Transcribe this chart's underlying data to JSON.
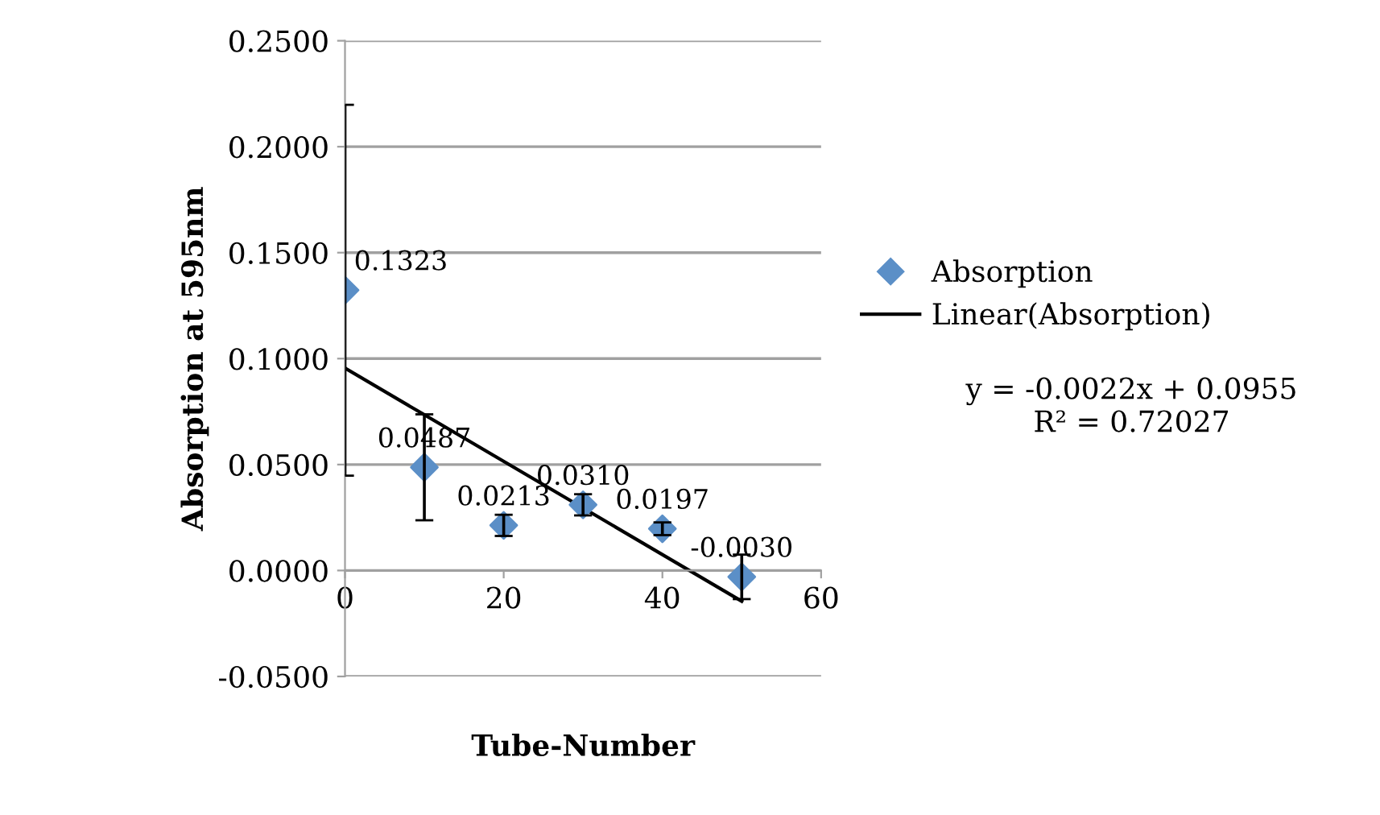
{
  "chart_data": {
    "type": "scatter",
    "xlabel": "Tube-Number",
    "ylabel": "Absorption at 595nm",
    "xlim": [
      0,
      60
    ],
    "xticks": [
      0,
      20,
      40,
      60
    ],
    "ylim": [
      -0.05,
      0.25
    ],
    "yticks": [
      {
        "value": -0.05,
        "label": "-0.0500"
      },
      {
        "value": 0,
        "label": "0.0000"
      },
      {
        "value": 0.05,
        "label": "0.0500"
      },
      {
        "value": 0.1,
        "label": "0.1000"
      },
      {
        "value": 0.15,
        "label": "0.1500"
      },
      {
        "value": 0.2,
        "label": "0.2000"
      },
      {
        "value": 0.25,
        "label": "0.2500"
      }
    ],
    "grid": "y",
    "legend": "right",
    "marker": "diamond",
    "series": [
      {
        "name": "Absorption",
        "color": "#5b8fc7",
        "x": [
          0,
          10,
          20,
          30,
          40,
          50
        ],
        "values": [
          0.1323,
          0.0487,
          0.0213,
          0.031,
          0.0197,
          -0.003
        ],
        "errors": [
          0.0875,
          0.025,
          0.005,
          0.005,
          0.003,
          0.0105
        ],
        "value_labels": [
          "0.1323",
          "0.0487",
          "0.0213",
          "0.0310",
          "0.0197",
          "-0.0030"
        ]
      },
      {
        "name": "Linear(Absorption)",
        "type": "line",
        "marker": "none",
        "color": "#000000",
        "x": [
          0,
          50
        ],
        "values": [
          0.0955,
          -0.0145
        ]
      }
    ],
    "annotations": [
      "y = -0.0022x + 0.0955\nR² = 0.72027"
    ]
  }
}
